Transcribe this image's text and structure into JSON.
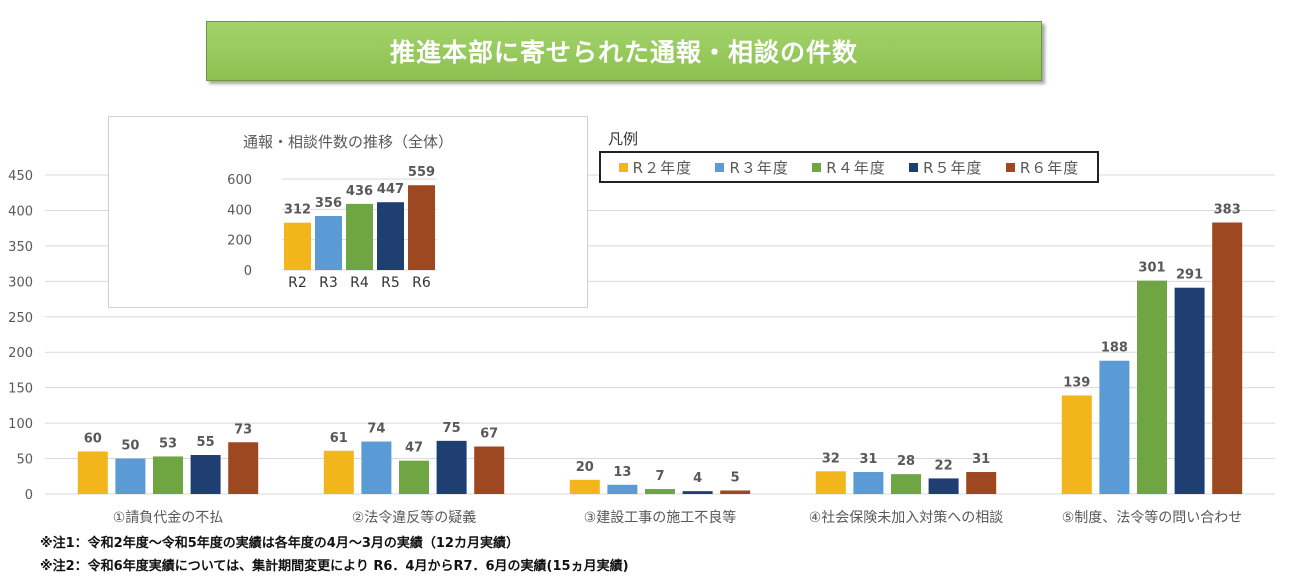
{
  "title": "推進本部に寄せられた通報・相談の件数",
  "legend": {
    "title": "凡例",
    "items": [
      {
        "label": "R２年度",
        "color": "#f2b61c"
      },
      {
        "label": "R３年度",
        "color": "#5b9bd5"
      },
      {
        "label": "R４年度",
        "color": "#70a544"
      },
      {
        "label": "R５年度",
        "color": "#1f3f73"
      },
      {
        "label": "R６年度",
        "color": "#9e4822"
      }
    ]
  },
  "notes": [
    "※注1：令和2年度～令和5年度の実績は各年度の4月～3月の実績（12カ月実績）",
    "※注2：令和6年度実績については、集計期間変更により R6．4月からR7．6月の実績(15ヵ月実績)"
  ],
  "chart_data": [
    {
      "type": "bar",
      "categories": [
        "①請負代金の不払",
        "②法令違反等の疑義",
        "③建設工事の施工不良等",
        "④社会保険未加入対策への相談",
        "⑤制度、法令等の問い合わせ"
      ],
      "series": [
        {
          "name": "R２年度",
          "color": "#f2b61c",
          "values": [
            60,
            61,
            20,
            32,
            139
          ]
        },
        {
          "name": "R３年度",
          "color": "#5b9bd5",
          "values": [
            50,
            74,
            13,
            31,
            188
          ]
        },
        {
          "name": "R４年度",
          "color": "#70a544",
          "values": [
            53,
            47,
            7,
            28,
            301
          ]
        },
        {
          "name": "R５年度",
          "color": "#1f3f73",
          "values": [
            55,
            75,
            4,
            22,
            291
          ]
        },
        {
          "name": "R６年度",
          "color": "#9e4822",
          "values": [
            73,
            67,
            5,
            31,
            383
          ]
        }
      ],
      "yticks": [
        0,
        50,
        100,
        150,
        200,
        250,
        300,
        350,
        400,
        450
      ],
      "ylim": [
        0,
        450
      ],
      "grid": true,
      "legend_position": "top-right"
    },
    {
      "type": "bar",
      "title": "通報・相談件数の推移（全体）",
      "categories": [
        "R2",
        "R3",
        "R4",
        "R5",
        "R6"
      ],
      "values": [
        312,
        356,
        436,
        447,
        559
      ],
      "colors": [
        "#f2b61c",
        "#5b9bd5",
        "#70a544",
        "#1f3f73",
        "#9e4822"
      ],
      "yticks": [
        0,
        200,
        400,
        600
      ],
      "ylim": [
        0,
        600
      ],
      "grid": true
    }
  ]
}
